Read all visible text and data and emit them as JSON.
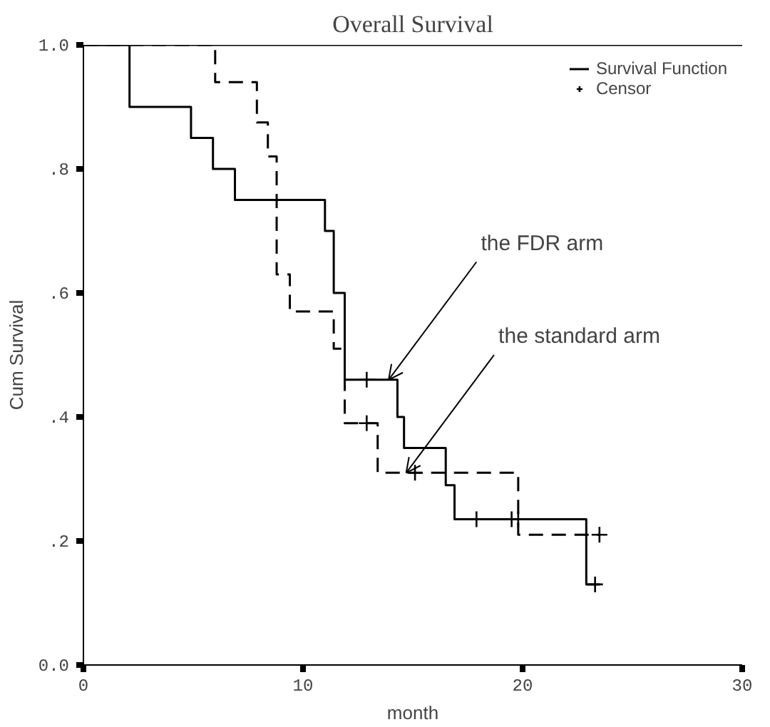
{
  "chart_data": {
    "type": "step",
    "title": "Overall Survival",
    "xlabel": "month",
    "ylabel": "Cum Survival",
    "xlim": [
      0,
      30
    ],
    "xticks": [
      0,
      10,
      20,
      30
    ],
    "ylim": [
      0,
      1.0
    ],
    "yticks": [
      {
        "value": 0,
        "label": "0.0"
      },
      {
        "value": 0.2,
        "label": ".2"
      },
      {
        "value": 0.4,
        "label": ".4"
      },
      {
        "value": 0.6,
        "label": ".6"
      },
      {
        "value": 0.8,
        "label": ".8"
      },
      {
        "value": 1.0,
        "label": "1.0"
      }
    ],
    "grid": false,
    "legend": "top right",
    "series": [
      {
        "name": "Survival Function",
        "color": "#000000",
        "line_style": "solid",
        "x": [
          0,
          2.1,
          4.9,
          5.9,
          6.9,
          11.0,
          11.4,
          11.9,
          14.3,
          14.6,
          16.5,
          16.9,
          22.9,
          23.5
        ],
        "values": [
          1.0,
          0.9,
          0.85,
          0.8,
          0.75,
          0.7,
          0.6,
          0.46,
          0.4,
          0.35,
          0.29,
          0.235,
          0.13,
          0.13
        ]
      },
      {
        "color": "#000000",
        "line_style": "dashed",
        "x": [
          0,
          6.0,
          7.9,
          8.4,
          8.8,
          9.4,
          11.4,
          11.9,
          13.4,
          19.8,
          23.5
        ],
        "values": [
          1.0,
          0.94,
          0.875,
          0.82,
          0.63,
          0.57,
          0.51,
          0.39,
          0.31,
          0.21,
          0.21
        ]
      },
      {
        "name": "Censor",
        "type": "scatter",
        "marker": "cross",
        "color": "#000000",
        "x": [
          12.9,
          17.9,
          19.5,
          19.8,
          23.3,
          12.9,
          15.1,
          23.5
        ],
        "values": [
          0.46,
          0.235,
          0.235,
          0.235,
          0.13,
          0.39,
          0.31,
          0.21
        ]
      }
    ],
    "annotations": [
      {
        "text": "the FDR arm",
        "x": 13.9,
        "y": 0.46
      },
      {
        "text": "the standard arm",
        "x": 14.7,
        "y": 0.31
      }
    ]
  }
}
